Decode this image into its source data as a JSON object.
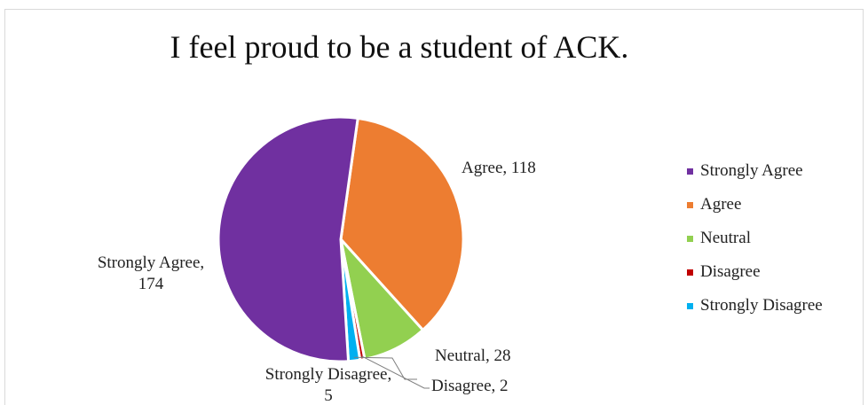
{
  "chart_data": {
    "type": "pie",
    "title": "I feel proud to be a student of ACK.",
    "categories": [
      "Strongly Agree",
      "Agree",
      "Neutral",
      "Disagree",
      "Strongly Disagree"
    ],
    "values": [
      174,
      118,
      28,
      2,
      5
    ],
    "colors": [
      "#7030a0",
      "#ed7d31",
      "#92d050",
      "#c00000",
      "#00b0f0"
    ],
    "data_labels": [
      [
        "Strongly Agree,",
        "174"
      ],
      [
        "Agree, 118"
      ],
      [
        "Neutral, 28"
      ],
      [
        "Disagree, 2"
      ],
      [
        "Strongly Disagree,",
        "5"
      ]
    ],
    "legend_position": "right"
  }
}
